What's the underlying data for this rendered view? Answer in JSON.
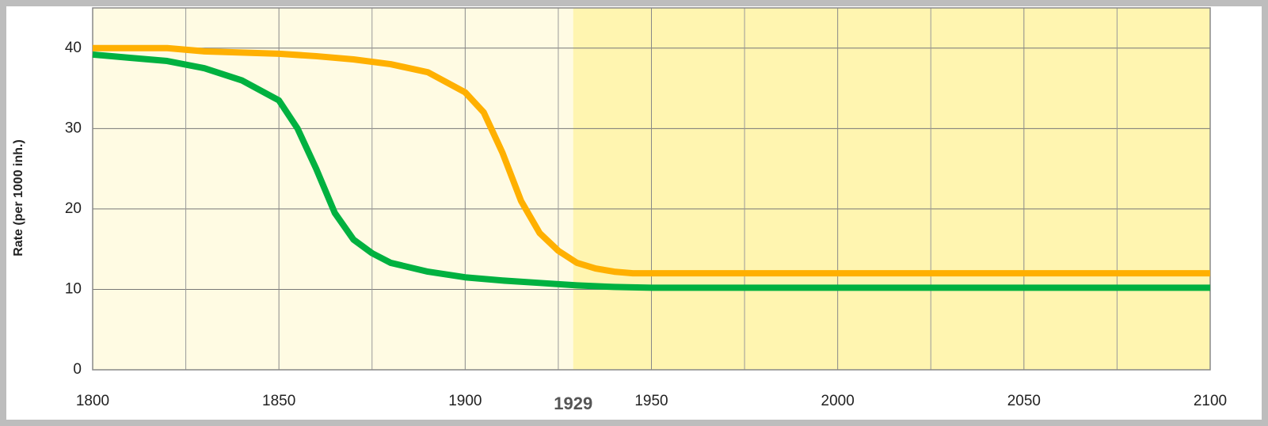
{
  "chart_data": {
    "type": "line",
    "y_label": "Rate (per 1000 inh.)",
    "xlim": [
      1800,
      2100
    ],
    "xticks": [
      1800,
      1850,
      1900,
      1950,
      2000,
      2050,
      2100
    ],
    "x_minor_ticks": [
      1825,
      1875,
      1925,
      1975,
      2025,
      2075
    ],
    "ylim": [
      0,
      45
    ],
    "yticks": [
      0,
      10,
      20,
      30,
      40
    ],
    "grid": true,
    "background_colors": [
      "#fffbe3",
      "#fff5b0"
    ],
    "annotation": {
      "text": "1929",
      "x": 1929
    },
    "series": [
      {
        "color": "#ffb000",
        "x": [
          1800,
          1820,
          1830,
          1850,
          1860,
          1870,
          1880,
          1890,
          1900,
          1905,
          1910,
          1915,
          1920,
          1925,
          1930,
          1935,
          1940,
          1945,
          2100
        ],
        "values": [
          40,
          40,
          39.6,
          39.3,
          39,
          38.6,
          38,
          37,
          34.5,
          32,
          27,
          21,
          17,
          14.8,
          13.3,
          12.6,
          12.2,
          12,
          12
        ]
      },
      {
        "color": "#00b140",
        "x": [
          1800,
          1810,
          1820,
          1830,
          1840,
          1850,
          1855,
          1860,
          1865,
          1870,
          1875,
          1880,
          1890,
          1900,
          1910,
          1920,
          1930,
          1940,
          1950,
          2100
        ],
        "values": [
          39.2,
          38.8,
          38.4,
          37.5,
          36,
          33.5,
          30,
          25,
          19.5,
          16.2,
          14.5,
          13.3,
          12.2,
          11.5,
          11.1,
          10.8,
          10.5,
          10.3,
          10.2,
          10.2
        ]
      }
    ]
  }
}
